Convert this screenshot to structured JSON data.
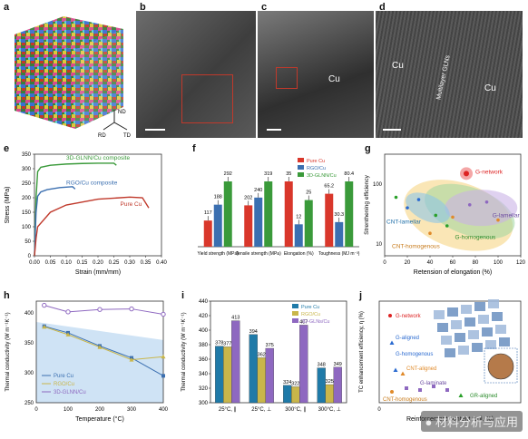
{
  "panel_labels": [
    "a",
    "b",
    "c",
    "d",
    "e",
    "f",
    "g",
    "h",
    "i",
    "j"
  ],
  "panel_a": {
    "axes": [
      "ND",
      "RD",
      "TD"
    ]
  },
  "panel_c": {
    "label": "Cu"
  },
  "panel_d": {
    "label_left": "Cu",
    "label_right": "Cu",
    "label_mid": "Multilayer GLNs"
  },
  "colors": {
    "pure_cu": "#c0392b",
    "rgo": "#3b6fb0",
    "glnc": "#3a9a3a",
    "blue_h": "#3b6fb0",
    "yellow": "#c9b64a",
    "purple": "#8e68c0",
    "teal": "#1f7aa8"
  },
  "chart_data": [
    {
      "id": "e",
      "type": "line",
      "xlabel": "Strain (mm/mm)",
      "ylabel": "Stress (MPa)",
      "xlim": [
        0.0,
        0.4
      ],
      "ylim": [
        0,
        350
      ],
      "xticks": [
        "0.00",
        "0.05",
        "0.10",
        "0.15",
        "0.20",
        "0.25",
        "0.30",
        "0.35",
        "0.40"
      ],
      "yticks": [
        "0",
        "50",
        "100",
        "150",
        "200",
        "250",
        "300",
        "350"
      ],
      "series": [
        {
          "name": "3D-GLNN/Cu composite",
          "color": "#3a9a3a",
          "x": [
            0,
            0.005,
            0.01,
            0.02,
            0.05,
            0.1,
            0.15,
            0.2,
            0.25,
            0.258
          ],
          "y": [
            0,
            200,
            290,
            305,
            312,
            316,
            318,
            319,
            319,
            312
          ]
        },
        {
          "name": "RGO/Cu composite",
          "color": "#3b6fb0",
          "x": [
            0,
            0.005,
            0.01,
            0.02,
            0.04,
            0.08,
            0.12,
            0.128
          ],
          "y": [
            0,
            150,
            205,
            220,
            228,
            235,
            238,
            230
          ]
        },
        {
          "name": "Pure Cu",
          "color": "#c0392b",
          "x": [
            0,
            0.005,
            0.01,
            0.05,
            0.1,
            0.2,
            0.3,
            0.34,
            0.36
          ],
          "y": [
            0,
            60,
            100,
            150,
            175,
            195,
            202,
            200,
            165
          ]
        }
      ]
    },
    {
      "id": "f",
      "type": "bar",
      "categories": [
        "Yield strength (MPa)",
        "Tensile strength (MPa)",
        "Elongation (%)",
        "Toughness (MJ m⁻³)"
      ],
      "series": [
        {
          "name": "Pure Cu",
          "color": "#d9372b",
          "values": [
            117,
            202,
            35,
            65.2
          ]
        },
        {
          "name": "RGO/Cu",
          "color": "#3b6fb0",
          "values": [
            188,
            240,
            12,
            30.3
          ]
        },
        {
          "name": "3D-GLNN/Cu",
          "color": "#3a9a3a",
          "values": [
            292,
            319,
            25,
            80.4
          ]
        }
      ],
      "value_labels": [
        [
          "117",
          "188",
          "292"
        ],
        [
          "202",
          "240",
          "319"
        ],
        [
          "35",
          "12",
          "25"
        ],
        [
          "65.2",
          "30.3",
          "80.4"
        ]
      ]
    },
    {
      "id": "g",
      "type": "scatter",
      "xlabel": "Retension of elongation (%)",
      "ylabel": "Strenthening efficiency",
      "xlim": [
        0,
        120
      ],
      "xticks": [
        "0",
        "20",
        "40",
        "60",
        "80",
        "100",
        "120"
      ],
      "yticks": [
        "10",
        "100"
      ],
      "log_y": true,
      "annotations": [
        "G-network",
        "CNT-lamellar",
        "G-lamellar",
        "G-homogenous",
        "CNT-homogenous"
      ]
    },
    {
      "id": "h",
      "type": "line",
      "xlabel": "Temperature (°C)",
      "ylabel": "Thermal conductivity (W m⁻¹K⁻¹)",
      "xlim": [
        0,
        400
      ],
      "ylim": [
        250,
        420
      ],
      "xticks": [
        "0",
        "100",
        "200",
        "300",
        "400"
      ],
      "yticks": [
        "250",
        "300",
        "350",
        "400"
      ],
      "series": [
        {
          "name": "Pure Cu",
          "color": "#3b6fb0",
          "x": [
            25,
            100,
            200,
            300,
            400
          ],
          "y": [
            378,
            367,
            345,
            325,
            295
          ]
        },
        {
          "name": "RGO/Cu",
          "color": "#c9b64a",
          "x": [
            25,
            100,
            200,
            300,
            400
          ],
          "y": [
            377,
            364,
            343,
            322,
            327
          ]
        },
        {
          "name": "3D-GLNN/Cu",
          "color": "#8e68c0",
          "x": [
            25,
            100,
            200,
            300,
            400
          ],
          "y": [
            413,
            402,
            406,
            407,
            398
          ]
        }
      ]
    },
    {
      "id": "i",
      "type": "bar",
      "ylabel": "Thermal conductivity (W m⁻¹K⁻¹)",
      "ylim": [
        300,
        440
      ],
      "yticks": [
        "300",
        "320",
        "340",
        "360",
        "380",
        "400",
        "420",
        "440"
      ],
      "categories": [
        "25°C, ∥",
        "25°C, ⊥",
        "300°C, ∥",
        "300°C, ⊥"
      ],
      "series": [
        {
          "name": "Pure Cu",
          "color": "#1f7aa8",
          "values": [
            378,
            394,
            324,
            348
          ]
        },
        {
          "name": "RGO/Cu",
          "color": "#c9b64a",
          "values": [
            377,
            362,
            322,
            325
          ]
        },
        {
          "name": "3D-GLNs/Cu",
          "color": "#8e68c0",
          "values": [
            413,
            375,
            407,
            349
          ]
        }
      ]
    },
    {
      "id": "j",
      "type": "scatter",
      "xlabel": "Reinforcement content (vol. %)",
      "ylabel": "TC enhancement efficiency, η (%)",
      "xticks": [
        "0"
      ],
      "annotations": [
        "G-network",
        "G-aligned",
        "G-homogenous",
        "CNT-aligned",
        "G-laminate",
        "CNT-homogenous",
        "GR-aligned"
      ]
    }
  ],
  "watermark": "材料分析与应用"
}
